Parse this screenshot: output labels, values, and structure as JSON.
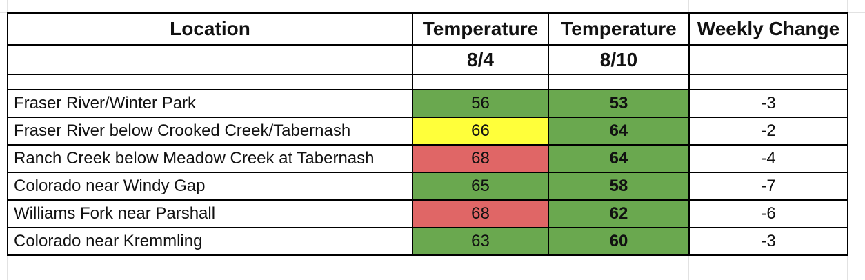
{
  "headers": {
    "location": "Location",
    "temp1_line1": "Temperature",
    "temp1_line2": "8/4",
    "temp2_line1": "Temperature",
    "temp2_line2": "8/10",
    "change": "Weekly Change"
  },
  "colors": {
    "green": "#6aa84f",
    "yellow": "#ffff3a",
    "red": "#e06666"
  },
  "rows": [
    {
      "location": "Fraser River/Winter Park",
      "t1": "56",
      "t1_color": "green",
      "t2": "53",
      "change": "-3"
    },
    {
      "location": "Fraser River below Crooked Creek/Tabernash",
      "t1": "66",
      "t1_color": "yellow",
      "t2": "64",
      "change": "-2"
    },
    {
      "location": "Ranch Creek below Meadow Creek at Tabernash",
      "t1": "68",
      "t1_color": "red",
      "t2": "64",
      "change": "-4"
    },
    {
      "location": "Colorado near Windy Gap",
      "t1": "65",
      "t1_color": "green",
      "t2": "58",
      "change": "-7"
    },
    {
      "location": "Williams Fork near Parshall",
      "t1": "68",
      "t1_color": "red",
      "t2": "62",
      "change": "-6"
    },
    {
      "location": "Colorado near Kremmling",
      "t1": "63",
      "t1_color": "green",
      "t2": "60",
      "change": "-3"
    }
  ]
}
